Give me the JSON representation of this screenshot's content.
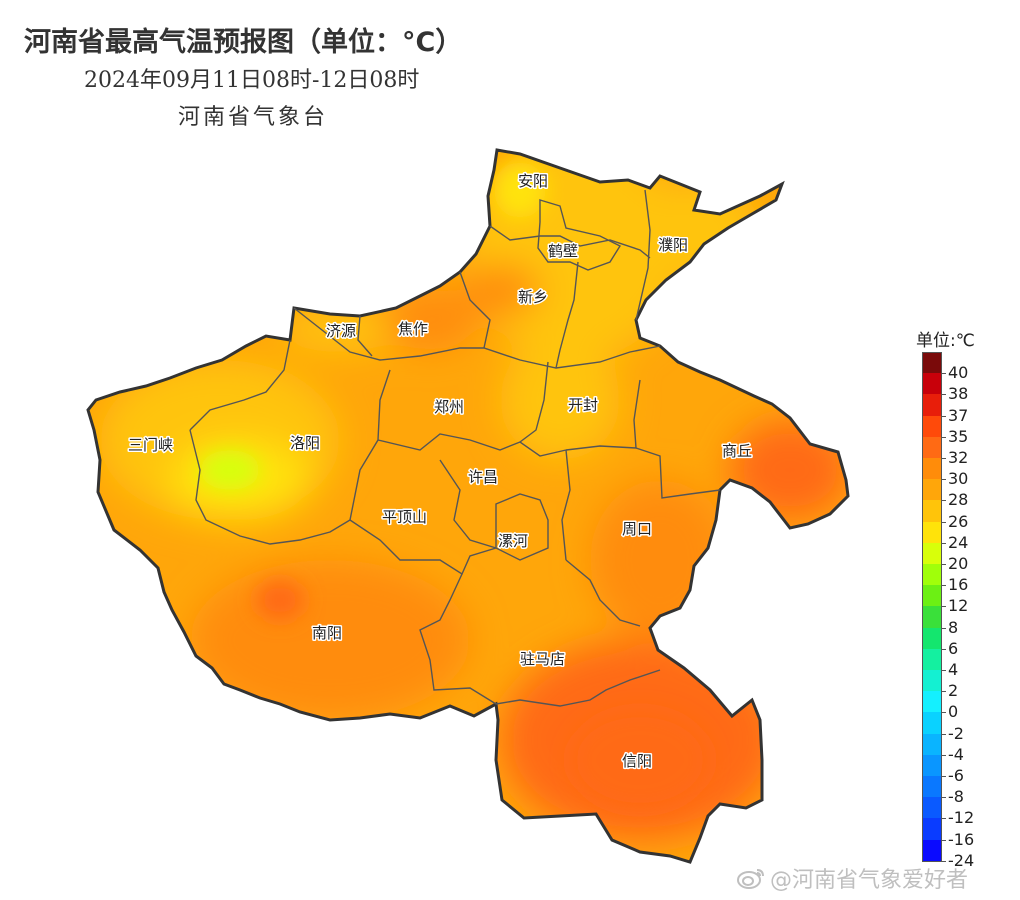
{
  "title": "河南省最高气温预报图（单位：°C）",
  "subtitle": "2024年09月11日08时-12日08时",
  "issuer": "河南省气象台",
  "legend": {
    "unit_label": "单位:℃",
    "items": [
      {
        "label": "40",
        "color": "#7a0a0a"
      },
      {
        "label": "38",
        "color": "#c8000a"
      },
      {
        "label": "37",
        "color": "#e81e0a"
      },
      {
        "label": "35",
        "color": "#ff4a0a"
      },
      {
        "label": "32",
        "color": "#ff6a14"
      },
      {
        "label": "30",
        "color": "#ff8c0a"
      },
      {
        "label": "28",
        "color": "#ffa60a"
      },
      {
        "label": "26",
        "color": "#ffc40a"
      },
      {
        "label": "24",
        "color": "#ffe30a"
      },
      {
        "label": "20",
        "color": "#d8ff0a"
      },
      {
        "label": "16",
        "color": "#a0ff0a"
      },
      {
        "label": "12",
        "color": "#6cf014"
      },
      {
        "label": "8",
        "color": "#3ae03a"
      },
      {
        "label": "6",
        "color": "#14e66e"
      },
      {
        "label": "4",
        "color": "#14f0a0"
      },
      {
        "label": "2",
        "color": "#14f0d2"
      },
      {
        "label": "0",
        "color": "#14f0ff"
      },
      {
        "label": "-2",
        "color": "#0ad2ff"
      },
      {
        "label": "-4",
        "color": "#0ab4ff"
      },
      {
        "label": "-6",
        "color": "#0a96ff"
      },
      {
        "label": "-8",
        "color": "#0a78ff"
      },
      {
        "label": "-12",
        "color": "#0a5aff"
      },
      {
        "label": "-16",
        "color": "#0a3cff"
      },
      {
        "label": "-24",
        "color": "#0a0aff"
      }
    ]
  },
  "cities": [
    {
      "name": "安阳"
    },
    {
      "name": "鹤壁"
    },
    {
      "name": "濮阳"
    },
    {
      "name": "新乡"
    },
    {
      "name": "济源"
    },
    {
      "name": "焦作"
    },
    {
      "name": "郑州"
    },
    {
      "name": "开封"
    },
    {
      "name": "三门峡"
    },
    {
      "name": "洛阳"
    },
    {
      "name": "商丘"
    },
    {
      "name": "许昌"
    },
    {
      "name": "平顶山"
    },
    {
      "name": "周口"
    },
    {
      "name": "漯河"
    },
    {
      "name": "南阳"
    },
    {
      "name": "驻马店"
    },
    {
      "name": "信阳"
    }
  ],
  "watermark": "@河南省气象爱好者"
}
